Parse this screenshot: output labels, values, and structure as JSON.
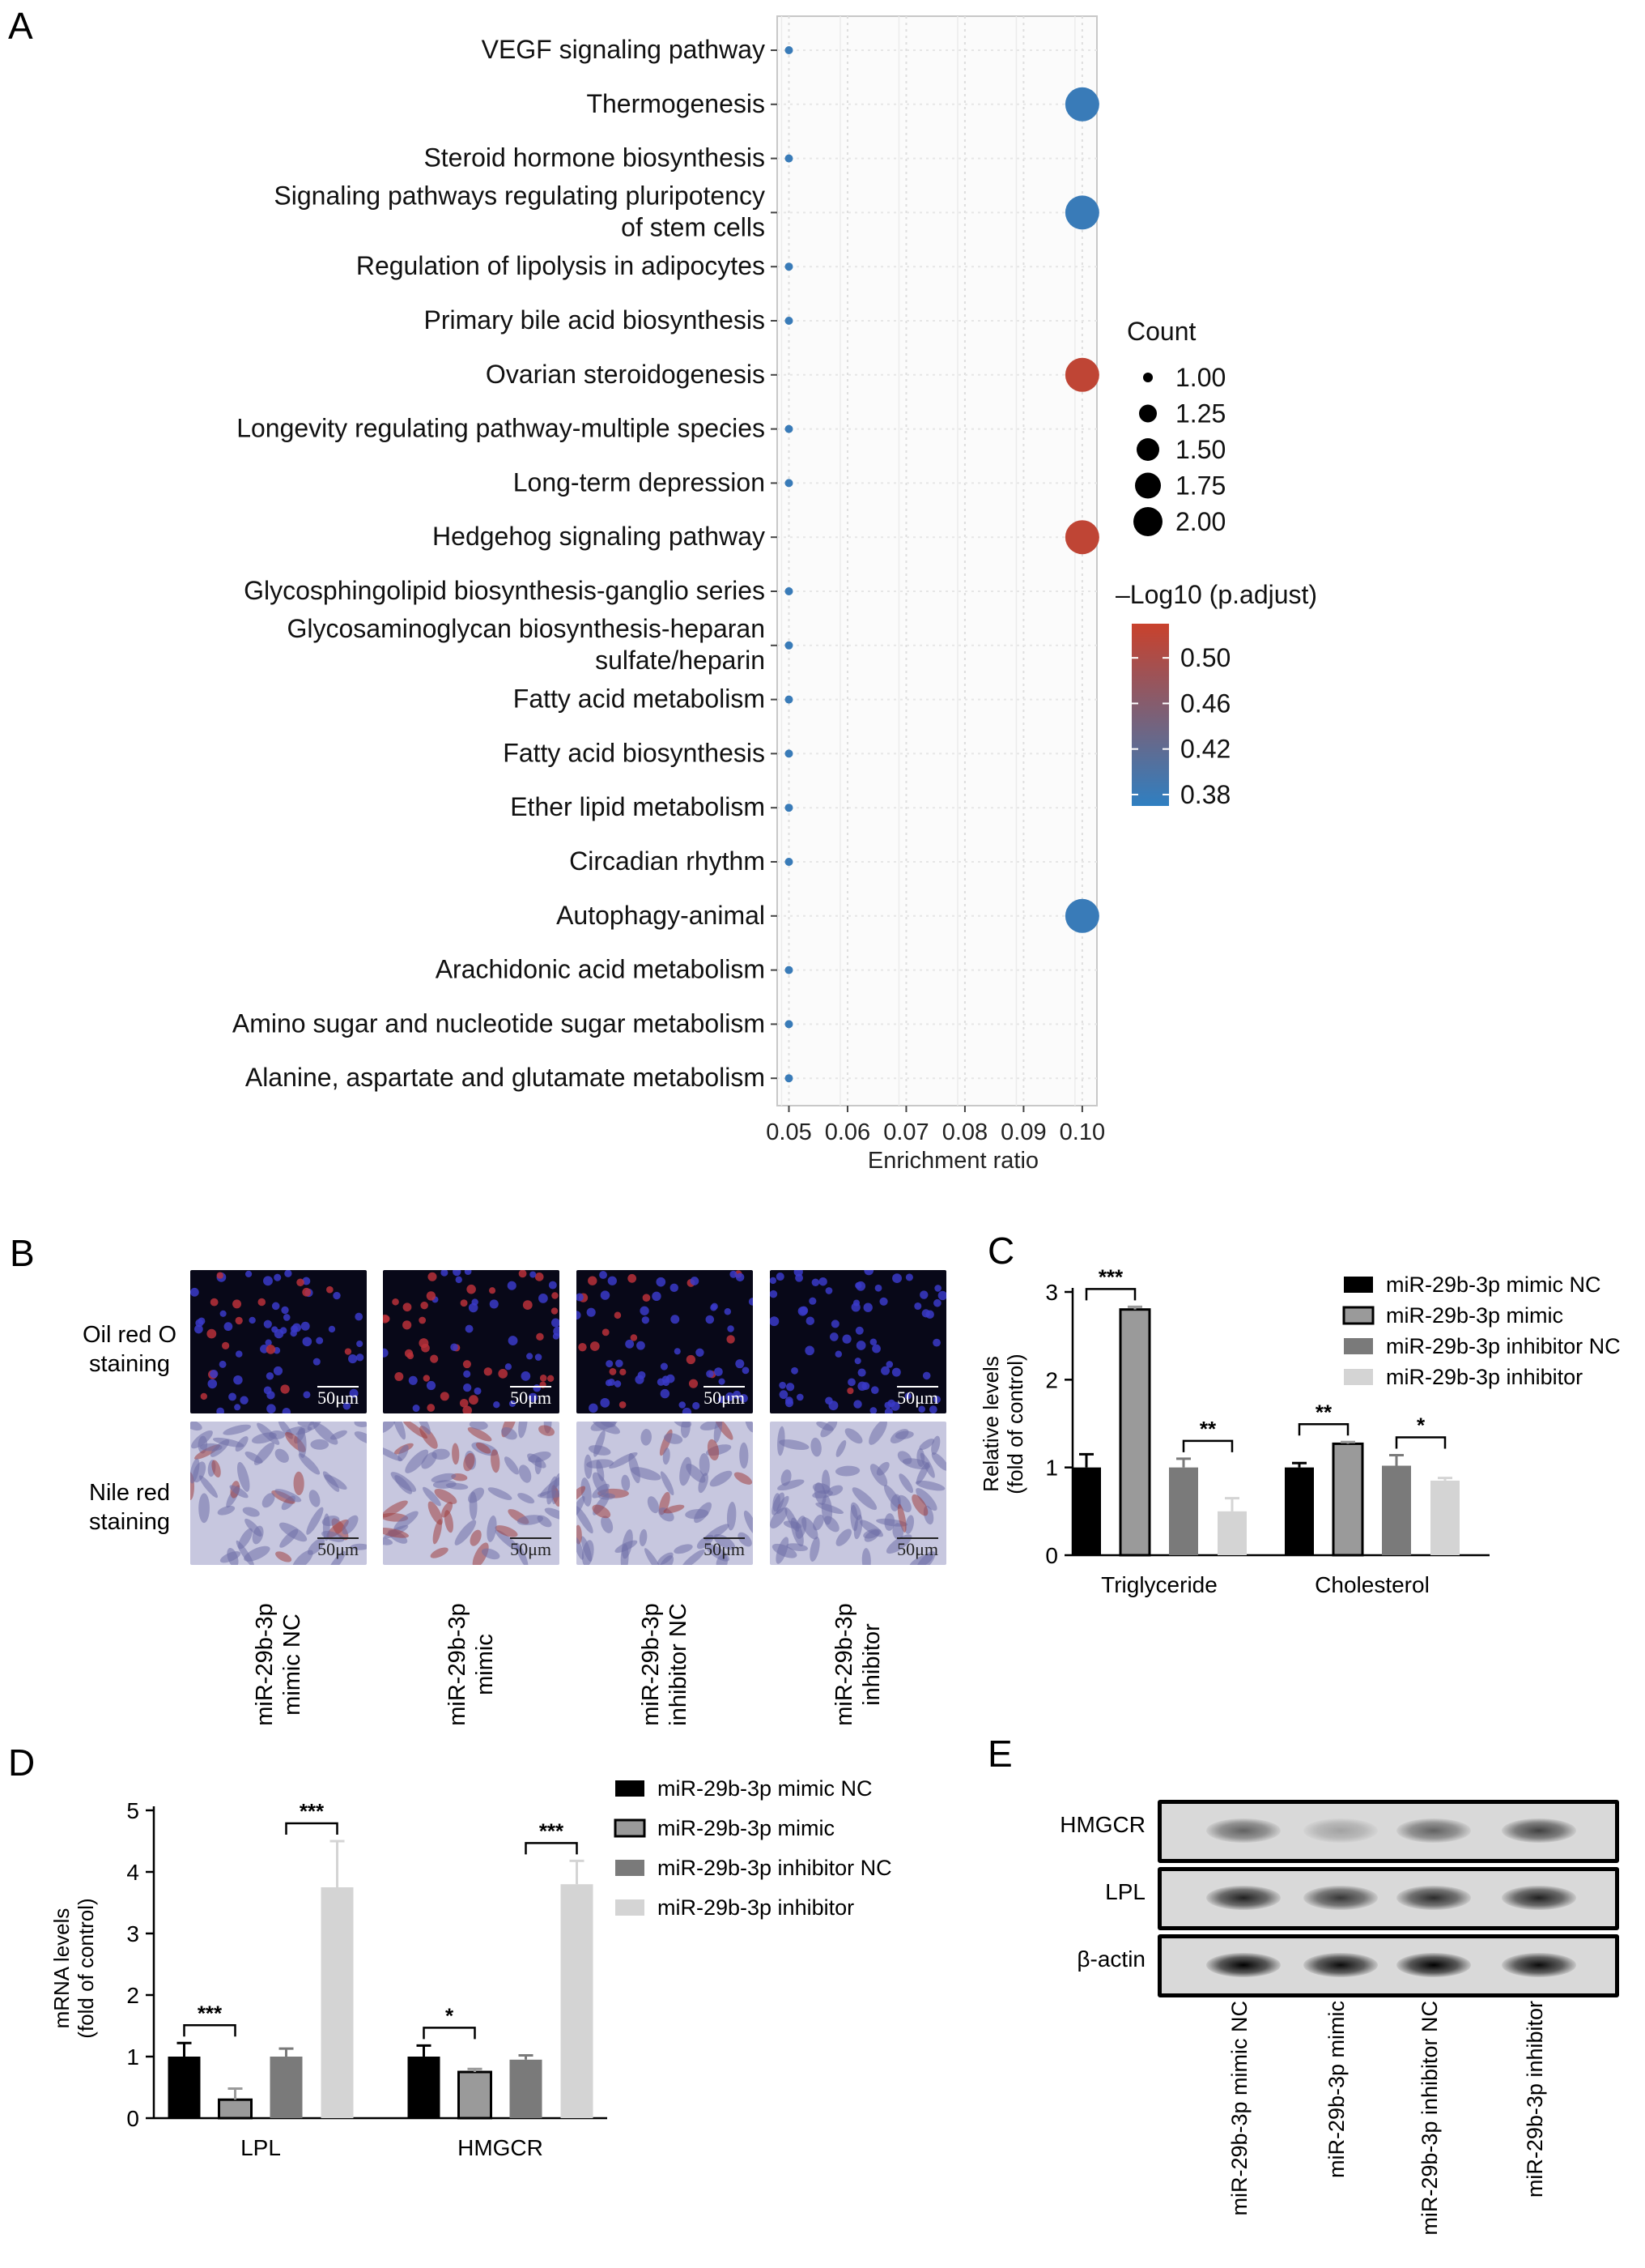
{
  "panels": {
    "a": "A",
    "b": "B",
    "c": "C",
    "d": "D",
    "e": "E"
  },
  "chart_data": [
    {
      "panel": "A",
      "type": "scatter",
      "x_label": "Enrichment ratio",
      "x_ticks": [
        "0.05",
        "0.06",
        "0.07",
        "0.08",
        "0.09",
        "0.10"
      ],
      "xlim": [
        0.048,
        0.1025
      ],
      "categories": [
        [
          "VEGF signaling pathway"
        ],
        [
          "Thermogenesis"
        ],
        [
          "Steroid hormone biosynthesis"
        ],
        [
          "Signaling pathways regulating pluripotency",
          "of stem cells"
        ],
        [
          "Regulation of lipolysis in adipocytes"
        ],
        [
          "Primary bile acid biosynthesis"
        ],
        [
          "Ovarian steroidogenesis"
        ],
        [
          "Longevity regulating pathway-multiple species"
        ],
        [
          "Long-term depression"
        ],
        [
          "Hedgehog signaling pathway"
        ],
        [
          "Glycosphingolipid biosynthesis-ganglio series"
        ],
        [
          "Glycosaminoglycan biosynthesis-heparan",
          "sulfate/heparin"
        ],
        [
          "Fatty acid metabolism"
        ],
        [
          "Fatty acid biosynthesis"
        ],
        [
          "Ether lipid metabolism"
        ],
        [
          "Circadian rhythm"
        ],
        [
          "Autophagy-animal"
        ],
        [
          "Arachidonic acid metabolism"
        ],
        [
          "Amino sugar and nucleotide sugar metabolism"
        ],
        [
          "Alanine, aspartate and glutamate metabolism"
        ]
      ],
      "enrichment_ratio": [
        0.05,
        0.1,
        0.05,
        0.1,
        0.05,
        0.05,
        0.1,
        0.05,
        0.05,
        0.1,
        0.05,
        0.05,
        0.05,
        0.05,
        0.05,
        0.05,
        0.1,
        0.05,
        0.05,
        0.05
      ],
      "count": [
        1,
        2,
        1,
        2,
        1,
        1,
        2,
        1,
        1,
        2,
        1,
        1,
        1,
        1,
        1,
        1,
        2,
        1,
        1,
        1
      ],
      "neg_log10_padj": [
        0.38,
        0.38,
        0.38,
        0.38,
        0.38,
        0.38,
        0.52,
        0.38,
        0.38,
        0.52,
        0.38,
        0.38,
        0.38,
        0.38,
        0.38,
        0.38,
        0.38,
        0.38,
        0.38,
        0.38
      ],
      "size_legend": {
        "title": "Count",
        "values": [
          "1.00",
          "1.25",
          "1.50",
          "1.75",
          "2.00"
        ]
      },
      "color_legend": {
        "title": "–Log10 (p.adjust)",
        "ticks": [
          "0.50",
          "0.46",
          "0.42",
          "0.38"
        ],
        "range": [
          0.37,
          0.53
        ],
        "low_color": "#2f7fc1",
        "high_color": "#c9412c"
      },
      "grid": true
    },
    {
      "panel": "C",
      "type": "bar",
      "y_label": [
        "Relative levels",
        "(fold of control)"
      ],
      "ylim": [
        0,
        3
      ],
      "y_ticks": [
        "0",
        "1",
        "2",
        "3"
      ],
      "categories": [
        "Triglyceride",
        "Cholesterol"
      ],
      "series": [
        {
          "name": "miR-29b-3p mimic NC",
          "values": [
            1.0,
            1.0
          ],
          "errors": [
            0.15,
            0.05
          ],
          "color": "#000000"
        },
        {
          "name": "miR-29b-3p mimic",
          "values": [
            2.8,
            1.27
          ],
          "errors": [
            0.03,
            0.02
          ],
          "color": "#9a9a9a"
        },
        {
          "name": "miR-29b-3p inhibitor NC",
          "values": [
            1.0,
            1.02
          ],
          "errors": [
            0.1,
            0.12
          ],
          "color": "#7a7a7a"
        },
        {
          "name": "miR-29b-3p inhibitor",
          "values": [
            0.5,
            0.85
          ],
          "errors": [
            0.15,
            0.03
          ],
          "color": "#d4d4d4"
        }
      ],
      "significance": [
        {
          "category": 0,
          "pair": [
            0,
            1
          ],
          "label": "***"
        },
        {
          "category": 0,
          "pair": [
            2,
            3
          ],
          "label": "**"
        },
        {
          "category": 1,
          "pair": [
            0,
            1
          ],
          "label": "**"
        },
        {
          "category": 1,
          "pair": [
            2,
            3
          ],
          "label": "*"
        }
      ]
    },
    {
      "panel": "D",
      "type": "bar",
      "y_label": [
        "mRNA levels",
        "(fold of control)"
      ],
      "ylim": [
        0,
        5
      ],
      "y_ticks": [
        "0",
        "1",
        "2",
        "3",
        "4",
        "5"
      ],
      "categories": [
        "LPL",
        "HMGCR"
      ],
      "series": [
        {
          "name": "miR-29b-3p mimic NC",
          "values": [
            1.0,
            1.0
          ],
          "errors": [
            0.22,
            0.18
          ],
          "color": "#000000"
        },
        {
          "name": "miR-29b-3p mimic",
          "values": [
            0.3,
            0.75
          ],
          "errors": [
            0.18,
            0.05
          ],
          "color": "#9a9a9a"
        },
        {
          "name": "miR-29b-3p inhibitor NC",
          "values": [
            1.0,
            0.95
          ],
          "errors": [
            0.13,
            0.07
          ],
          "color": "#7a7a7a"
        },
        {
          "name": "miR-29b-3p inhibitor",
          "values": [
            3.75,
            3.8
          ],
          "errors": [
            0.75,
            0.38
          ],
          "color": "#d4d4d4"
        }
      ],
      "significance": [
        {
          "category": 0,
          "pair": [
            0,
            1
          ],
          "label": "***"
        },
        {
          "category": 0,
          "pair": [
            2,
            3
          ],
          "label": "***"
        },
        {
          "category": 1,
          "pair": [
            0,
            1
          ],
          "label": "*"
        },
        {
          "category": 1,
          "pair": [
            2,
            3
          ],
          "label": "***"
        }
      ]
    }
  ],
  "panel_b": {
    "row_labels": [
      [
        "Oil red O",
        "staining"
      ],
      [
        "Nile red",
        "staining"
      ]
    ],
    "scale": "50μm",
    "columns": [
      [
        "miR-29b-3p",
        "mimic NC"
      ],
      [
        "miR-29b-3p",
        "mimic"
      ],
      [
        "miR-29b-3p",
        "inhibitor NC"
      ],
      [
        "miR-29b-3p",
        "inhibitor"
      ]
    ],
    "lipid_signal": [
      0.35,
      1.0,
      0.4,
      0.05
    ]
  },
  "panel_e": {
    "rows": [
      "HMGCR",
      "LPL",
      "β-actin"
    ],
    "lanes": [
      "miR-29b-3p mimic NC",
      "miR-29b-3p mimic",
      "miR-29b-3p inhibitor NC",
      "miR-29b-3p inhibitor"
    ]
  }
}
